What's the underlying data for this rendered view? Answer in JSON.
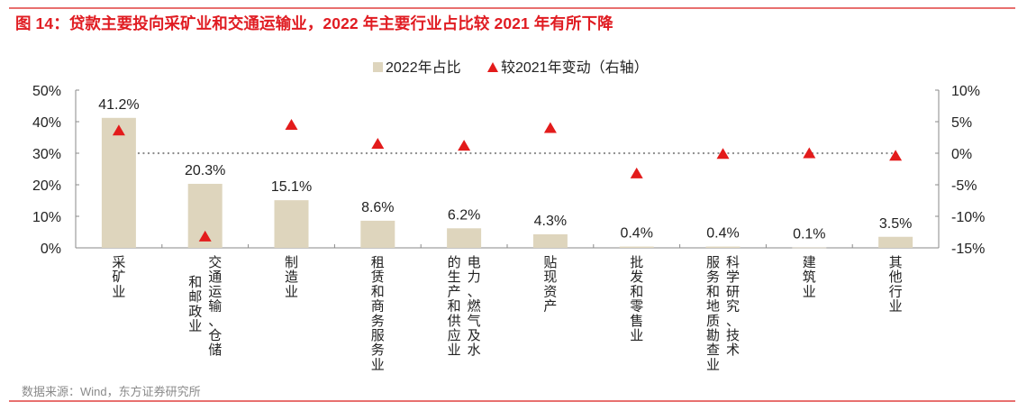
{
  "title": "图 14：贷款主要投向采矿业和交通运输业，2022 年主要行业占比较 2021 年有所下降",
  "source": "数据来源：Wind，东方证券研究所",
  "colors": {
    "bar": "#ded5bd",
    "marker": "#e31b1b",
    "title": "#e01c22",
    "rule": "#e8706f",
    "zero_line": "#8c8c8c"
  },
  "chart_data": {
    "type": "bar",
    "title": "贷款主要投向采矿业和交通运输业，2022 年主要行业占比较 2021 年有所下降",
    "categories": [
      "采矿业",
      "交通运输、仓储和邮政业",
      "制造业",
      "租赁和商务服务业",
      "电力、燃气及水的生产和供应业",
      "贴现资产",
      "批发和零售业",
      "科学研究、技术服务和地质勘查业",
      "建筑业",
      "其他行业"
    ],
    "category_lines": [
      [
        "采矿业"
      ],
      [
        "交通运输、仓储",
        "和邮政业"
      ],
      [
        "制造业"
      ],
      [
        "租赁和商务服务业"
      ],
      [
        "电力、燃气及水",
        "的生产和供应业"
      ],
      [
        "贴现资产"
      ],
      [
        "批发和零售业"
      ],
      [
        "科学研究、技术",
        "服务和地质勘查业"
      ],
      [
        "建筑业"
      ],
      [
        "其他行业"
      ]
    ],
    "series": [
      {
        "name": "2022年占比",
        "type": "bar",
        "axis": "left",
        "values": [
          41.2,
          20.3,
          15.1,
          8.6,
          6.2,
          4.3,
          0.4,
          0.4,
          0.1,
          3.5
        ],
        "labels": [
          "41.2%",
          "20.3%",
          "15.1%",
          "8.6%",
          "6.2%",
          "4.3%",
          "0.4%",
          "0.4%",
          "0.1%",
          "3.5%"
        ]
      },
      {
        "name": "较2021年变动（右轴）",
        "type": "scatter",
        "marker": "triangle",
        "axis": "right",
        "values": [
          3.6,
          -13.2,
          4.5,
          1.5,
          1.2,
          4.0,
          -3.2,
          -0.1,
          0.0,
          -0.4
        ]
      }
    ],
    "legend": {
      "position": "top-center",
      "entries": [
        "2022年占比",
        "较2021年变动（右轴）"
      ]
    },
    "y_left": {
      "ylim": [
        0,
        50
      ],
      "ticks": [
        0,
        10,
        20,
        30,
        40,
        50
      ],
      "tick_labels": [
        "0%",
        "10%",
        "20%",
        "30%",
        "40%",
        "50%"
      ]
    },
    "y_right": {
      "ylim": [
        -15,
        10
      ],
      "ticks": [
        -15,
        -10,
        -5,
        0,
        5,
        10
      ],
      "tick_labels": [
        "-15%",
        "-10%",
        "-5%",
        "0%",
        "5%",
        "10%"
      ]
    },
    "reference_line": {
      "axis": "right",
      "value": 0,
      "style": "dotted"
    },
    "xlabel": "",
    "ylabel": "",
    "grid": false
  }
}
